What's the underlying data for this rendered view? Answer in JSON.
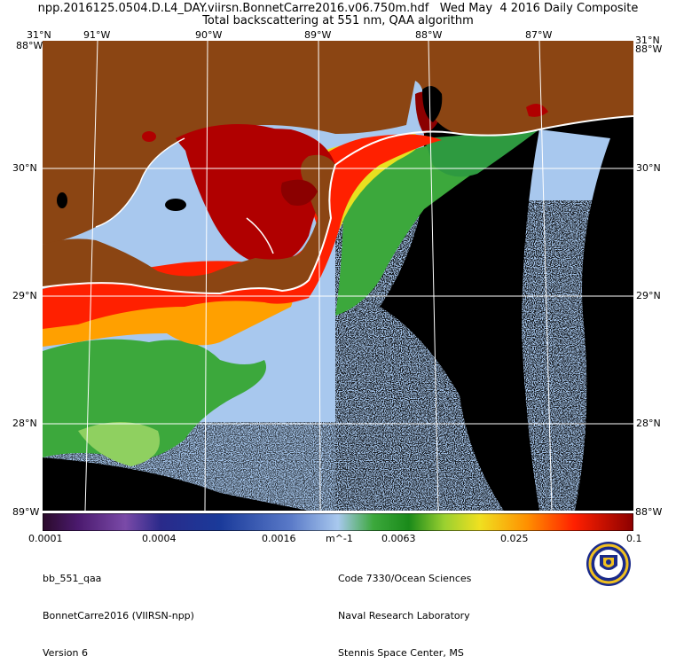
{
  "title": {
    "line1": "npp.2016125.0504.D.L4_DAY.viirsn.BonnetCarre2016.v06.750m.hdf   Wed May  4 2016 Daily Composite",
    "line2": "Total backscattering at 551 nm, QAA algorithm"
  },
  "map": {
    "lon_ticks": [
      "91°W",
      "90°W",
      "89°W",
      "88°W",
      "87°W"
    ],
    "lon_left_label": "31°N",
    "lon_right_label": "31°N",
    "lat_ticks": [
      "30°N",
      "29°N",
      "28°N"
    ],
    "corner_top_left": "88°W",
    "corner_top_right": "88°W",
    "corner_bottom_left": "89°W",
    "corner_bottom_right": "88°W",
    "colors": {
      "land": "#8b4513",
      "no_data": "#000000",
      "low": "#a8c8ee",
      "mid": "#3ca83c",
      "high": "#ff2000",
      "max": "#8b0000"
    }
  },
  "colorbar": {
    "labels": [
      "0.0001",
      "0.0004",
      "0.0016",
      "m^-1",
      "0.0063",
      "0.025",
      "0.1"
    ],
    "scale": "log"
  },
  "footer": {
    "left": [
      "bb_551_qaa",
      "BonnetCarre2016 (VIIRSN-npp)",
      "Version 6"
    ],
    "right": [
      "Code 7330/Ocean Sciences",
      "Naval Research Laboratory",
      "Stennis Space Center, MS"
    ]
  }
}
